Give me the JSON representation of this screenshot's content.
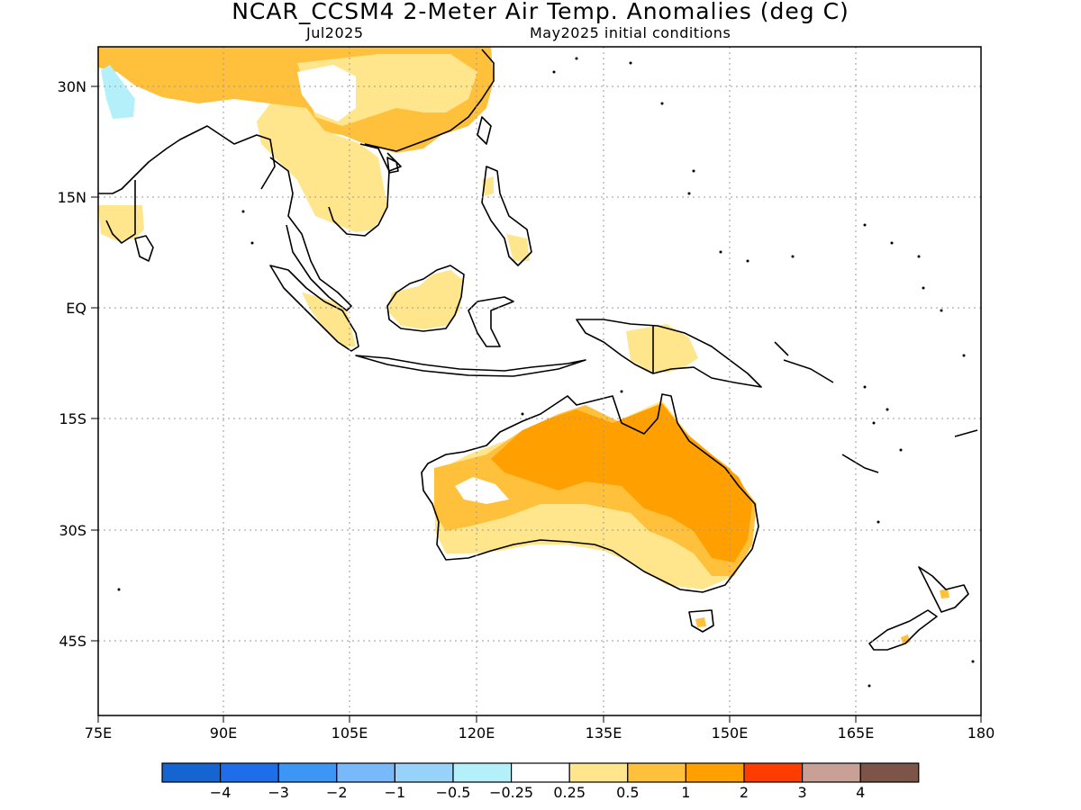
{
  "header": {
    "title": "NCAR_CCSM4 2-Meter Air Temp. Anomalies (deg C)",
    "valid_month": "Jul2025",
    "initial_conditions": "May2025 initial conditions"
  },
  "axes": {
    "lat_labels": [
      "30N",
      "15N",
      "EQ",
      "15S",
      "30S",
      "45S"
    ],
    "lon_labels": [
      "75E",
      "90E",
      "105E",
      "120E",
      "135E",
      "150E",
      "165E",
      "180"
    ]
  },
  "legend": {
    "labels": [
      "−4",
      "−3",
      "−2",
      "−1",
      "−0.5",
      "−0.25",
      "0.25",
      "0.5",
      "1",
      "2",
      "3",
      "4"
    ],
    "colors": [
      "#1464d2",
      "#1e6eeb",
      "#3c96f5",
      "#78b9fa",
      "#96d2fa",
      "#b4f0fa",
      "#ffffff",
      "#ffe68c",
      "#ffc03c",
      "#ffa000",
      "#ff3c00",
      "#c8a096",
      "#7d5548"
    ]
  },
  "map_features": {
    "anomaly_regions": [
      {
        "name": "eastern-china",
        "class": "0.5-1",
        "color": "#ffc03c"
      },
      {
        "name": "northern-australia",
        "class": "1-2",
        "color": "#ffa000"
      },
      {
        "name": "southern-australia",
        "class": "0.5-1",
        "color": "#ffc03c"
      },
      {
        "name": "indochina",
        "class": "0.25-0.5",
        "color": "#ffe68c"
      },
      {
        "name": "tibet-cold-spot",
        "class": "-0.5--0.25",
        "color": "#b4f0fa"
      }
    ]
  }
}
